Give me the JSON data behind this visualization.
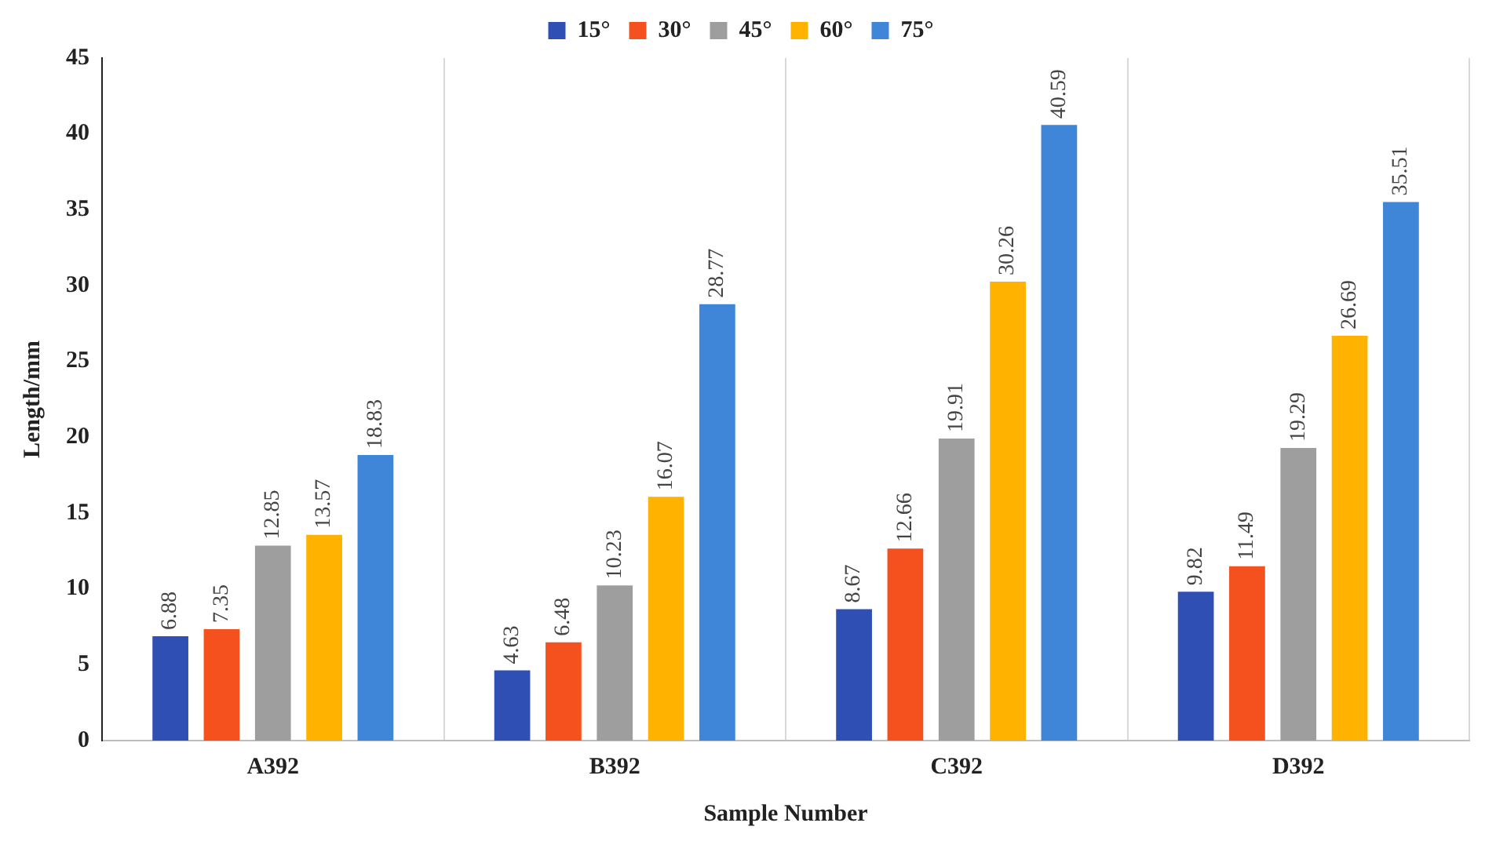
{
  "chart_data": {
    "type": "bar",
    "xlabel": "Sample Number",
    "ylabel": "Length/mm",
    "categories": [
      "A392",
      "B392",
      "C392",
      "D392"
    ],
    "series": [
      {
        "name": "15°",
        "color": "#2f4fb5",
        "values": [
          6.88,
          4.63,
          8.67,
          9.82
        ]
      },
      {
        "name": "30°",
        "color": "#f4511e",
        "values": [
          7.35,
          6.48,
          12.66,
          11.49
        ]
      },
      {
        "name": "45°",
        "color": "#9e9e9e",
        "values": [
          12.85,
          10.23,
          19.91,
          19.29
        ]
      },
      {
        "name": "60°",
        "color": "#ffb300",
        "values": [
          13.57,
          16.07,
          30.26,
          26.69
        ]
      },
      {
        "name": "75°",
        "color": "#3f86d8",
        "values": [
          18.83,
          28.77,
          40.59,
          35.51
        ]
      }
    ],
    "ylim": [
      0,
      45
    ],
    "yticks": [
      0,
      5,
      10,
      15,
      20,
      25,
      30,
      35,
      40,
      45
    ],
    "grid": "x",
    "legend": "top",
    "data_labels": true
  }
}
